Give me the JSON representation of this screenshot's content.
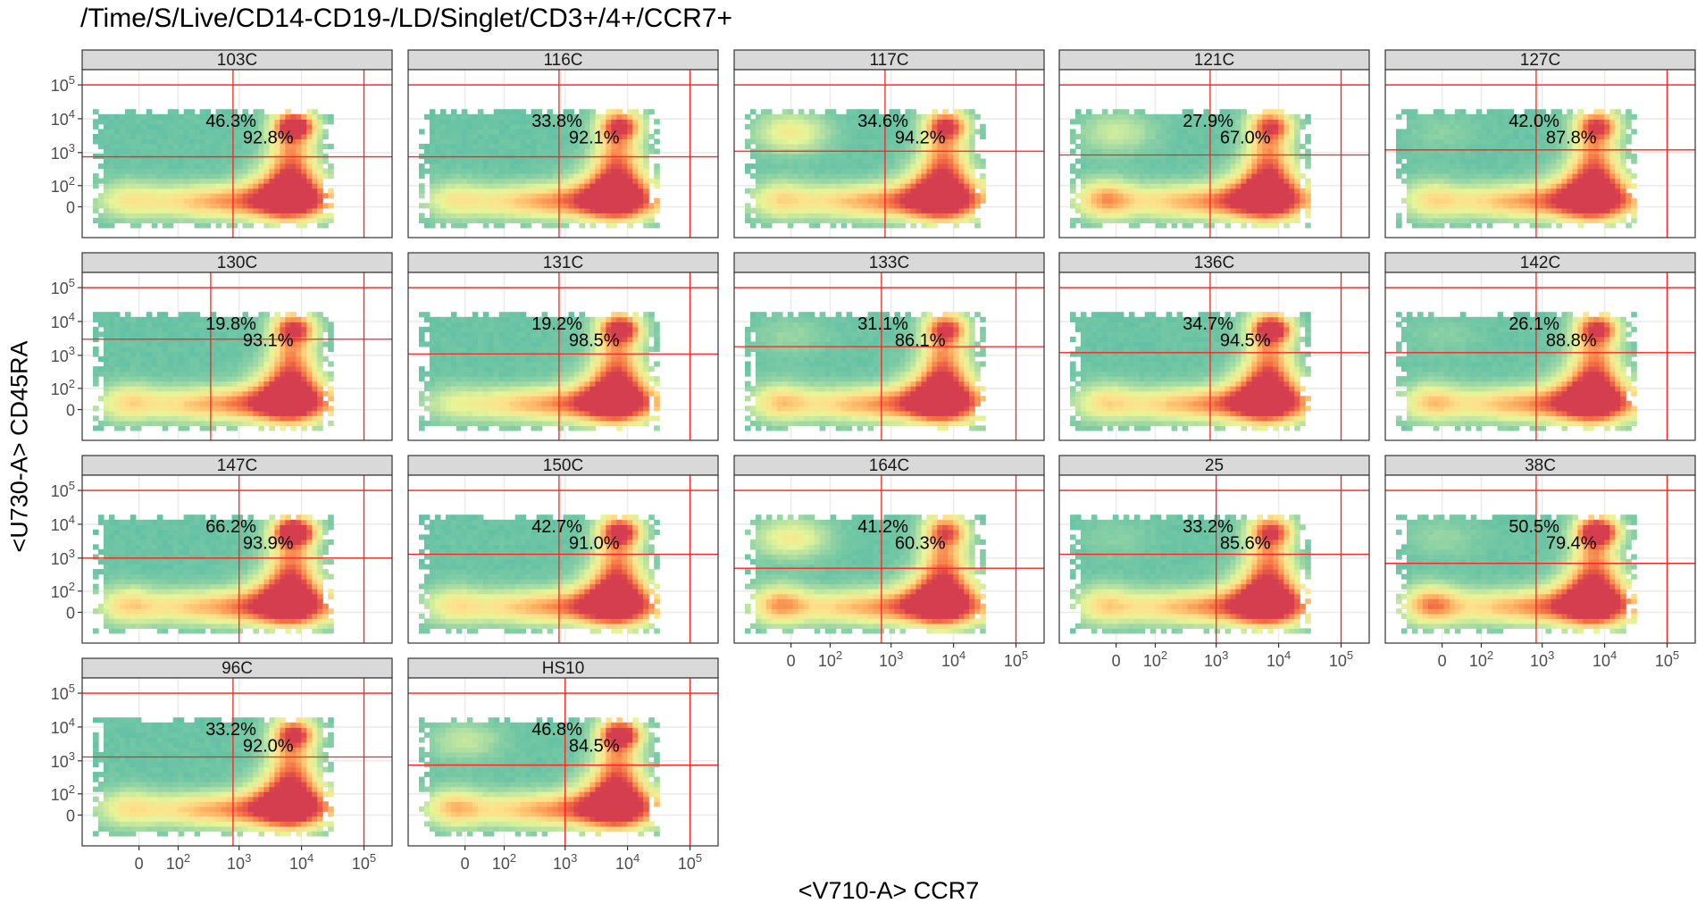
{
  "chart_data": {
    "type": "heatmap",
    "title": "/Time/S/Live/CD14-CD19-/LD/Singlet/CD3+/4+/CCR7+",
    "xlabel": "<V710-A> CCR7",
    "ylabel": "<U730-A> CD45RA",
    "x_tick_labels": [
      "0",
      "10^2",
      "10^3",
      "10^4",
      "10^5"
    ],
    "y_tick_labels": [
      "0",
      "10^2",
      "10^3",
      "10^4",
      "10^5"
    ],
    "x_ticks": [
      0,
      100,
      1000,
      10000,
      100000
    ],
    "y_ticks": [
      0,
      100,
      1000,
      10000,
      100000
    ],
    "scale": "biexponential",
    "grid": true,
    "gate_color": "#ff2020",
    "colormap": [
      "#5e4fa2",
      "#3288bd",
      "#66c2a5",
      "#abdda4",
      "#e6f598",
      "#fee08b",
      "#fdae61",
      "#f46d43",
      "#d53e4f"
    ],
    "panels": [
      {
        "name": "103C",
        "gate_x": 800,
        "gate_x_max": 100000,
        "gate_y": 750,
        "gate_y_max": 100000,
        "pct_upper": "46.3%",
        "pct_gate": "92.8%",
        "left_cluster": 0.3,
        "top_left_cluster": 0.0,
        "hot_spot": 0.85
      },
      {
        "name": "116C",
        "gate_x": 800,
        "gate_x_max": 100000,
        "gate_y": 750,
        "gate_y_max": 100000,
        "pct_upper": "33.8%",
        "pct_gate": "92.1%",
        "left_cluster": 0.3,
        "top_left_cluster": 0.0,
        "hot_spot": 0.6
      },
      {
        "name": "117C",
        "gate_x": 800,
        "gate_x_max": 100000,
        "gate_y": 1100,
        "gate_y_max": 100000,
        "pct_upper": "34.6%",
        "pct_gate": "94.2%",
        "left_cluster": 0.4,
        "top_left_cluster": 0.55,
        "hot_spot": 0.6
      },
      {
        "name": "121C",
        "gate_x": 800,
        "gate_x_max": 100000,
        "gate_y": 850,
        "gate_y_max": 100000,
        "pct_upper": "27.9%",
        "pct_gate": "67.0%",
        "left_cluster": 0.7,
        "top_left_cluster": 0.35,
        "hot_spot": 0.5
      },
      {
        "name": "127C",
        "gate_x": 800,
        "gate_x_max": 100000,
        "gate_y": 1200,
        "gate_y_max": 100000,
        "pct_upper": "42.0%",
        "pct_gate": "87.8%",
        "left_cluster": 0.4,
        "top_left_cluster": 0.1,
        "hot_spot": 0.55
      },
      {
        "name": "130C",
        "gate_x": 350,
        "gate_x_max": 100000,
        "gate_y": 3000,
        "gate_y_max": 100000,
        "pct_upper": "19.8%",
        "pct_gate": "93.1%",
        "left_cluster": 0.4,
        "top_left_cluster": 0.0,
        "hot_spot": 0.6
      },
      {
        "name": "131C",
        "gate_x": 800,
        "gate_x_max": 100000,
        "gate_y": 1100,
        "gate_y_max": 100000,
        "pct_upper": "19.2%",
        "pct_gate": "98.5%",
        "left_cluster": 0.15,
        "top_left_cluster": 0.0,
        "hot_spot": 0.75
      },
      {
        "name": "133C",
        "gate_x": 700,
        "gate_x_max": 100000,
        "gate_y": 1800,
        "gate_y_max": 100000,
        "pct_upper": "31.1%",
        "pct_gate": "86.1%",
        "left_cluster": 0.5,
        "top_left_cluster": 0.15,
        "hot_spot": 0.55
      },
      {
        "name": "136C",
        "gate_x": 800,
        "gate_x_max": 100000,
        "gate_y": 1200,
        "gate_y_max": 100000,
        "pct_upper": "34.7%",
        "pct_gate": "94.5%",
        "left_cluster": 0.4,
        "top_left_cluster": 0.0,
        "hot_spot": 0.8
      },
      {
        "name": "142C",
        "gate_x": 800,
        "gate_x_max": 100000,
        "gate_y": 1200,
        "gate_y_max": 100000,
        "pct_upper": "26.1%",
        "pct_gate": "88.8%",
        "left_cluster": 0.5,
        "top_left_cluster": 0.1,
        "hot_spot": 0.6
      },
      {
        "name": "147C",
        "gate_x": 1000,
        "gate_x_max": 100000,
        "gate_y": 1000,
        "gate_y_max": 100000,
        "pct_upper": "66.2%",
        "pct_gate": "93.9%",
        "left_cluster": 0.45,
        "top_left_cluster": 0.0,
        "hot_spot": 1.0
      },
      {
        "name": "150C",
        "gate_x": 800,
        "gate_x_max": 100000,
        "gate_y": 1300,
        "gate_y_max": 100000,
        "pct_upper": "42.7%",
        "pct_gate": "91.0%",
        "left_cluster": 0.35,
        "top_left_cluster": 0.0,
        "hot_spot": 0.7
      },
      {
        "name": "164C",
        "gate_x": 700,
        "gate_x_max": 100000,
        "gate_y": 500,
        "gate_y_max": 100000,
        "pct_upper": "41.2%",
        "pct_gate": "60.3%",
        "left_cluster": 0.7,
        "top_left_cluster": 0.55,
        "hot_spot": 0.45
      },
      {
        "name": "25",
        "gate_x": 1000,
        "gate_x_max": 100000,
        "gate_y": 1300,
        "gate_y_max": 100000,
        "pct_upper": "33.2%",
        "pct_gate": "85.6%",
        "left_cluster": 0.45,
        "top_left_cluster": 0.1,
        "hot_spot": 0.55
      },
      {
        "name": "38C",
        "gate_x": 800,
        "gate_x_max": 100000,
        "gate_y": 700,
        "gate_y_max": 100000,
        "pct_upper": "50.5%",
        "pct_gate": "79.4%",
        "left_cluster": 0.8,
        "top_left_cluster": 0.15,
        "hot_spot": 0.9
      },
      {
        "name": "96C",
        "gate_x": 800,
        "gate_x_max": 100000,
        "gate_y": 1300,
        "gate_y_max": 100000,
        "pct_upper": "33.2%",
        "pct_gate": "92.0%",
        "left_cluster": 0.35,
        "top_left_cluster": 0.0,
        "hot_spot": 0.6
      },
      {
        "name": "HS10",
        "gate_x": 1000,
        "gate_x_max": 100000,
        "gate_y": 750,
        "gate_y_max": 100000,
        "pct_upper": "46.8%",
        "pct_gate": "84.5%",
        "left_cluster": 0.55,
        "top_left_cluster": 0.3,
        "hot_spot": 0.8
      }
    ]
  }
}
